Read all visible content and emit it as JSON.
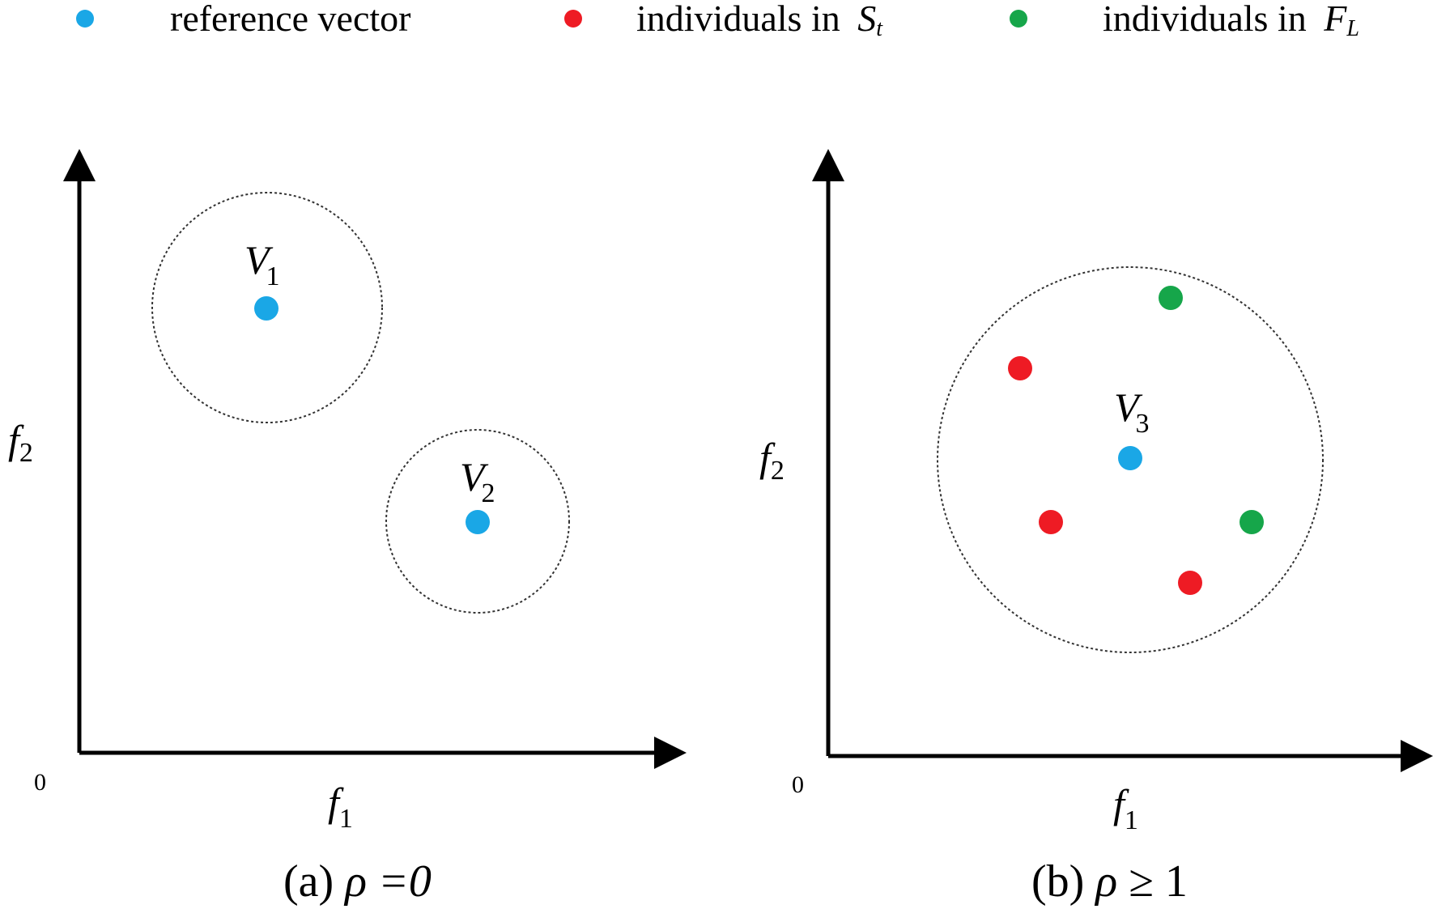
{
  "colors": {
    "reference_vector": "#1aa7e6",
    "individual_St": "#ee1b24",
    "individual_FL": "#16a64a",
    "axis": "#000000"
  },
  "legend": {
    "reference_vector": "reference vector",
    "individuals_in": "individuals in",
    "S_main": "S",
    "S_sub": "t",
    "F_main": "F",
    "F_sub": "L"
  },
  "panel_a": {
    "origin_label": "0",
    "x_axis": {
      "main": "f",
      "sub": "1"
    },
    "y_axis": {
      "main": "f",
      "sub": "2"
    },
    "v1": {
      "main": "V",
      "sub": "1"
    },
    "v2": {
      "main": "V",
      "sub": "2"
    },
    "caption": {
      "prefix": "(a) ",
      "rho": "ρ",
      "rest": " =0"
    }
  },
  "panel_b": {
    "origin_label": "0",
    "x_axis": {
      "main": "f",
      "sub": "1"
    },
    "y_axis": {
      "main": "f",
      "sub": "2"
    },
    "v3": {
      "main": "V",
      "sub": "3"
    },
    "caption": {
      "prefix": "(b) ",
      "rho": "ρ",
      "rest": " ≥ 1"
    }
  }
}
